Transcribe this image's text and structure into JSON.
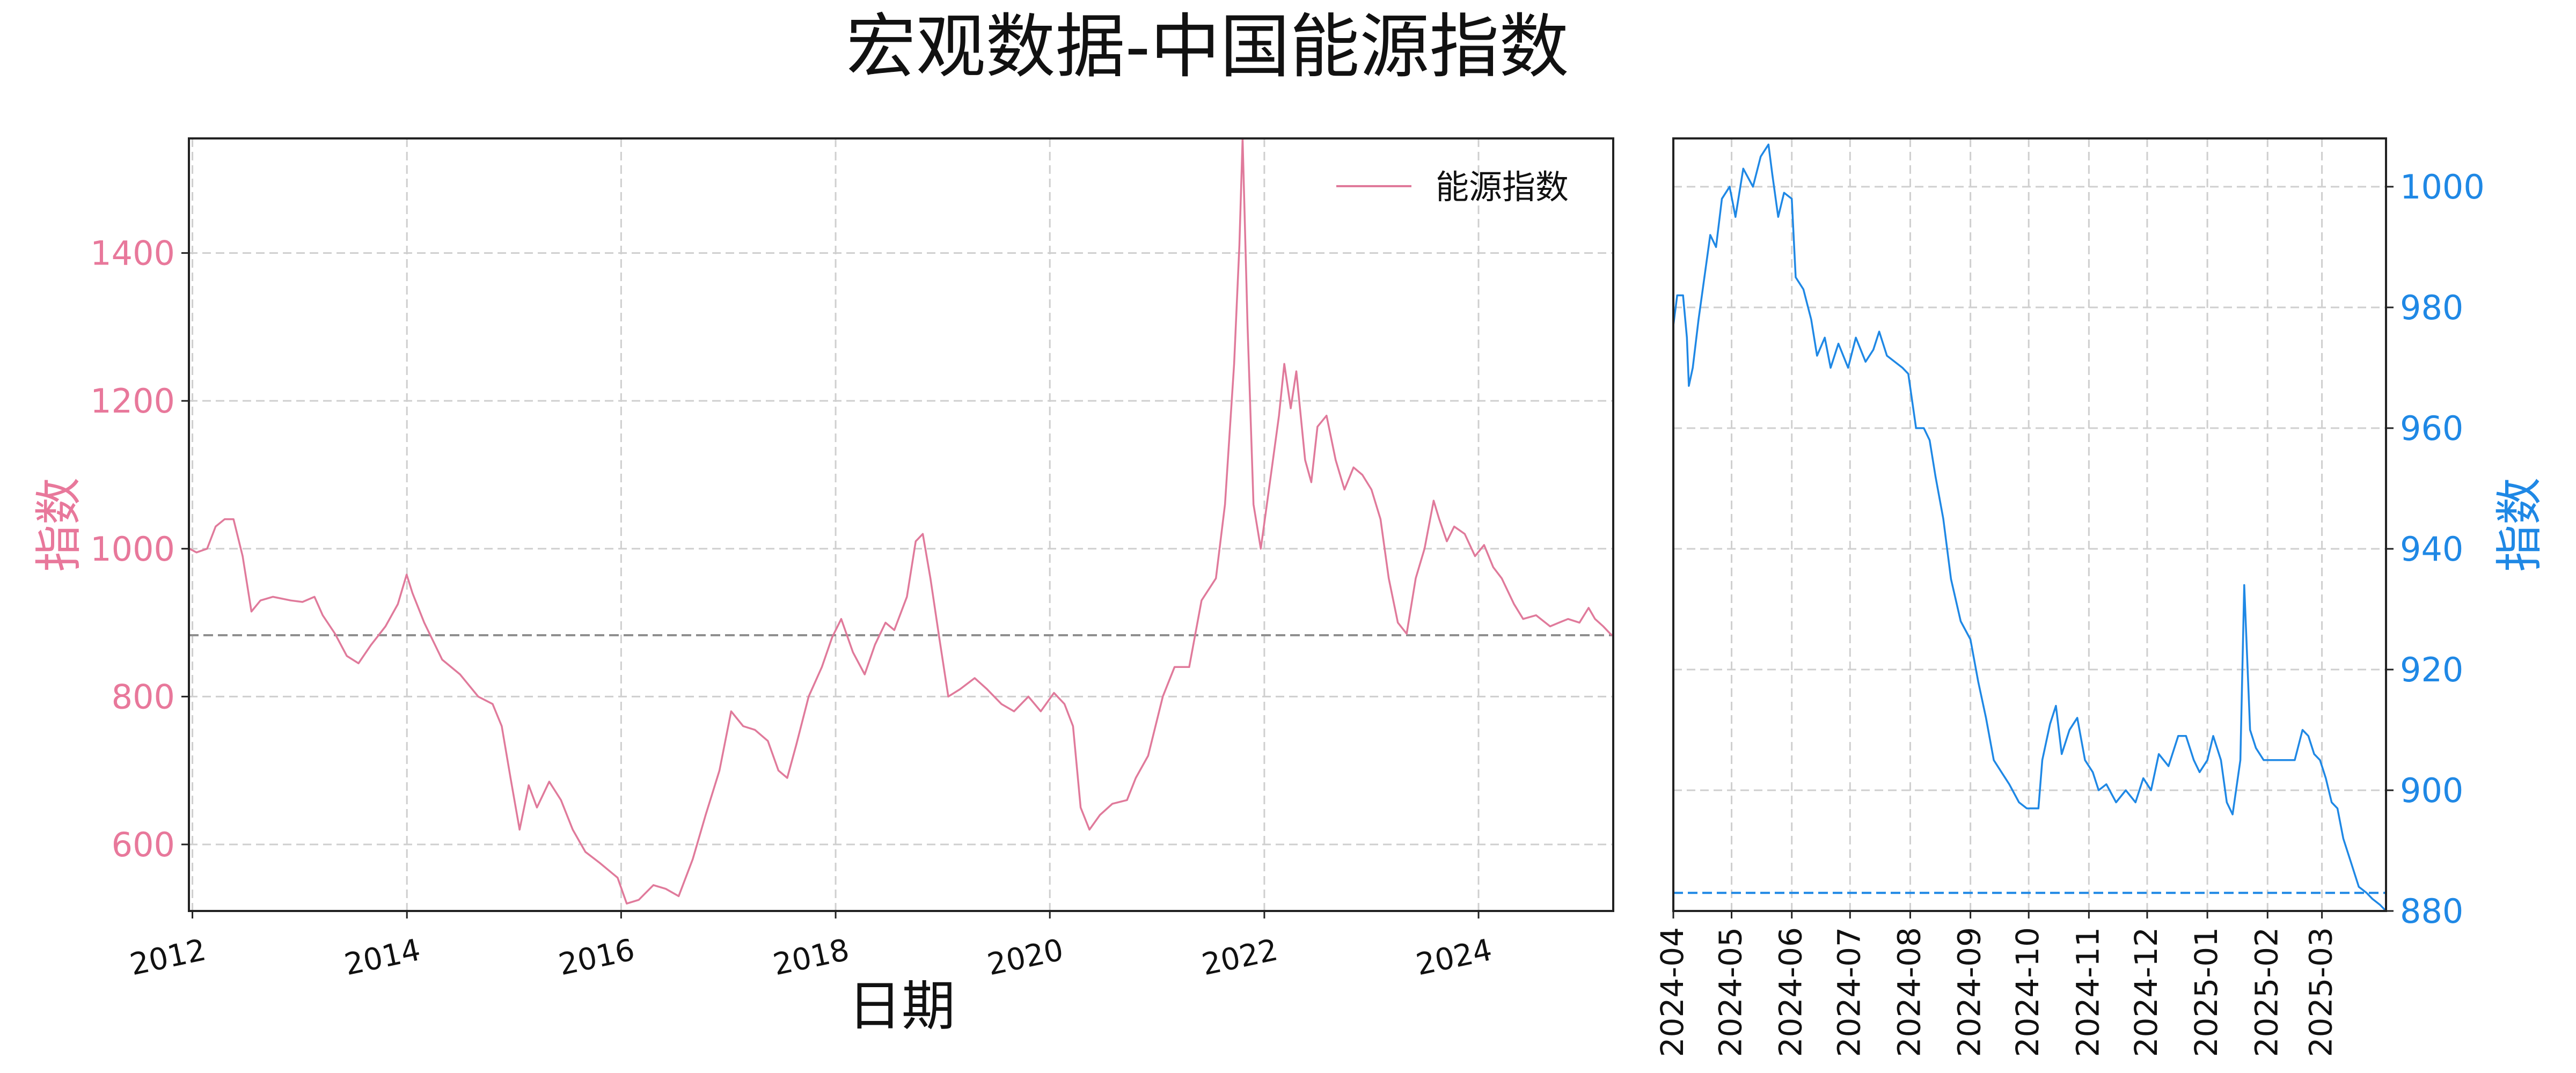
{
  "title": "宏观数据-中国能源指数",
  "colors": {
    "main_line": "#e07a9b",
    "main_axis": "#e8789b",
    "right_line": "#1f88e5",
    "right_axis": "#1f88e5",
    "grid": "#cfcfcf",
    "refline": "#8f8f8f"
  },
  "chart_data": [
    {
      "type": "line",
      "xlabel": "日期",
      "ylabel": "指数",
      "legend": "top-right",
      "grid": true,
      "ylim": [
        510,
        1555
      ],
      "xlim": [
        "2011-12-20",
        "2025-04-04"
      ],
      "x_ticks": [
        "2012",
        "2014",
        "2016",
        "2018",
        "2020",
        "2022",
        "2024"
      ],
      "y_ticks": [
        600,
        800,
        1000,
        1200,
        1400
      ],
      "reference_line": 883,
      "series": [
        {
          "name": "能源指数",
          "points": [
            [
              "2011-12-22",
              1000
            ],
            [
              "2012-01-15",
              995
            ],
            [
              "2012-02-20",
              1000
            ],
            [
              "2012-03-20",
              1030
            ],
            [
              "2012-04-20",
              1040
            ],
            [
              "2012-05-20",
              1040
            ],
            [
              "2012-06-20",
              990
            ],
            [
              "2012-07-20",
              915
            ],
            [
              "2012-08-20",
              930
            ],
            [
              "2012-10-01",
              935
            ],
            [
              "2012-12-01",
              930
            ],
            [
              "2013-01-10",
              928
            ],
            [
              "2013-02-20",
              935
            ],
            [
              "2013-03-20",
              910
            ],
            [
              "2013-05-01",
              885
            ],
            [
              "2013-06-10",
              855
            ],
            [
              "2013-07-20",
              845
            ],
            [
              "2013-09-01",
              870
            ],
            [
              "2013-10-20",
              895
            ],
            [
              "2013-12-01",
              925
            ],
            [
              "2013-12-31",
              965
            ],
            [
              "2014-01-20",
              940
            ],
            [
              "2014-03-01",
              900
            ],
            [
              "2014-05-01",
              850
            ],
            [
              "2014-07-01",
              830
            ],
            [
              "2014-09-01",
              800
            ],
            [
              "2014-10-20",
              790
            ],
            [
              "2014-11-20",
              760
            ],
            [
              "2014-12-20",
              690
            ],
            [
              "2015-01-20",
              620
            ],
            [
              "2015-02-20",
              680
            ],
            [
              "2015-03-20",
              650
            ],
            [
              "2015-05-01",
              685
            ],
            [
              "2015-06-10",
              660
            ],
            [
              "2015-07-20",
              620
            ],
            [
              "2015-09-01",
              590
            ],
            [
              "2015-10-20",
              575
            ],
            [
              "2015-12-20",
              555
            ],
            [
              "2016-01-20",
              520
            ],
            [
              "2016-03-01",
              525
            ],
            [
              "2016-04-20",
              545
            ],
            [
              "2016-06-01",
              540
            ],
            [
              "2016-07-15",
              530
            ],
            [
              "2016-09-01",
              580
            ],
            [
              "2016-10-15",
              640
            ],
            [
              "2016-12-01",
              700
            ],
            [
              "2017-01-10",
              780
            ],
            [
              "2017-02-20",
              760
            ],
            [
              "2017-04-01",
              755
            ],
            [
              "2017-05-15",
              740
            ],
            [
              "2017-06-20",
              700
            ],
            [
              "2017-07-20",
              690
            ],
            [
              "2017-08-20",
              735
            ],
            [
              "2017-10-01",
              800
            ],
            [
              "2017-11-15",
              840
            ],
            [
              "2017-12-20",
              880
            ],
            [
              "2018-01-20",
              905
            ],
            [
              "2018-03-01",
              860
            ],
            [
              "2018-04-10",
              830
            ],
            [
              "2018-05-15",
              870
            ],
            [
              "2018-06-20",
              900
            ],
            [
              "2018-07-20",
              890
            ],
            [
              "2018-09-01",
              935
            ],
            [
              "2018-10-01",
              1010
            ],
            [
              "2018-10-25",
              1020
            ],
            [
              "2018-11-20",
              960
            ],
            [
              "2018-12-20",
              880
            ],
            [
              "2019-01-20",
              800
            ],
            [
              "2019-03-01",
              810
            ],
            [
              "2019-04-20",
              825
            ],
            [
              "2019-06-01",
              810
            ],
            [
              "2019-07-20",
              790
            ],
            [
              "2019-09-01",
              780
            ],
            [
              "2019-10-20",
              800
            ],
            [
              "2019-12-01",
              780
            ],
            [
              "2020-01-15",
              805
            ],
            [
              "2020-02-20",
              790
            ],
            [
              "2020-03-20",
              760
            ],
            [
              "2020-04-15",
              650
            ],
            [
              "2020-05-15",
              620
            ],
            [
              "2020-06-20",
              640
            ],
            [
              "2020-08-01",
              655
            ],
            [
              "2020-09-20",
              660
            ],
            [
              "2020-10-20",
              690
            ],
            [
              "2020-12-01",
              720
            ],
            [
              "2021-01-20",
              800
            ],
            [
              "2021-03-01",
              840
            ],
            [
              "2021-04-20",
              840
            ],
            [
              "2021-06-01",
              930
            ],
            [
              "2021-07-20",
              960
            ],
            [
              "2021-08-20",
              1060
            ],
            [
              "2021-09-20",
              1250
            ],
            [
              "2021-10-08",
              1410
            ],
            [
              "2021-10-19",
              1555
            ],
            [
              "2021-11-05",
              1300
            ],
            [
              "2021-11-25",
              1060
            ],
            [
              "2021-12-20",
              1000
            ],
            [
              "2022-01-20",
              1090
            ],
            [
              "2022-02-20",
              1180
            ],
            [
              "2022-03-10",
              1250
            ],
            [
              "2022-04-01",
              1190
            ],
            [
              "2022-04-20",
              1240
            ],
            [
              "2022-05-20",
              1120
            ],
            [
              "2022-06-10",
              1090
            ],
            [
              "2022-07-01",
              1165
            ],
            [
              "2022-08-01",
              1180
            ],
            [
              "2022-09-01",
              1120
            ],
            [
              "2022-10-01",
              1080
            ],
            [
              "2022-11-01",
              1110
            ],
            [
              "2022-12-01",
              1100
            ],
            [
              "2023-01-01",
              1080
            ],
            [
              "2023-02-01",
              1040
            ],
            [
              "2023-03-01",
              960
            ],
            [
              "2023-04-01",
              900
            ],
            [
              "2023-05-01",
              885
            ],
            [
              "2023-06-01",
              960
            ],
            [
              "2023-07-01",
              1000
            ],
            [
              "2023-08-01",
              1065
            ],
            [
              "2023-08-20",
              1040
            ],
            [
              "2023-09-15",
              1010
            ],
            [
              "2023-10-10",
              1030
            ],
            [
              "2023-11-15",
              1020
            ],
            [
              "2023-12-20",
              990
            ],
            [
              "2024-01-20",
              1005
            ],
            [
              "2024-02-20",
              975
            ],
            [
              "2024-03-20",
              960
            ],
            [
              "2024-05-01",
              925
            ],
            [
              "2024-06-01",
              905
            ],
            [
              "2024-07-15",
              910
            ],
            [
              "2024-09-01",
              895
            ],
            [
              "2024-10-01",
              900
            ],
            [
              "2024-11-01",
              905
            ],
            [
              "2024-12-10",
              900
            ],
            [
              "2025-01-10",
              920
            ],
            [
              "2025-02-01",
              905
            ],
            [
              "2025-03-01",
              895
            ],
            [
              "2025-03-25",
              885
            ],
            [
              "2025-04-03",
              882
            ]
          ]
        }
      ]
    },
    {
      "type": "line",
      "ylabel": "指数",
      "grid": true,
      "ylim": [
        880,
        1008
      ],
      "xlim": [
        "2024-04-01",
        "2025-04-03"
      ],
      "x_ticks": [
        "2024-04",
        "2024-05",
        "2024-06",
        "2024-07",
        "2024-08",
        "2024-09",
        "2024-10",
        "2024-11",
        "2024-12",
        "2025-01",
        "2025-02",
        "2025-03"
      ],
      "y_ticks": [
        880,
        900,
        920,
        940,
        960,
        980,
        1000
      ],
      "reference_line": 883,
      "series": [
        {
          "points": [
            [
              "2024-04-01",
              977
            ],
            [
              "2024-04-03",
              982
            ],
            [
              "2024-04-06",
              982
            ],
            [
              "2024-04-08",
              975
            ],
            [
              "2024-04-09",
              967
            ],
            [
              "2024-04-11",
              970
            ],
            [
              "2024-04-14",
              978
            ],
            [
              "2024-04-17",
              985
            ],
            [
              "2024-04-20",
              992
            ],
            [
              "2024-04-23",
              990
            ],
            [
              "2024-04-26",
              998
            ],
            [
              "2024-04-30",
              1000
            ],
            [
              "2024-05-03",
              995
            ],
            [
              "2024-05-07",
              1003
            ],
            [
              "2024-05-12",
              1000
            ],
            [
              "2024-05-16",
              1005
            ],
            [
              "2024-05-20",
              1007
            ],
            [
              "2024-05-22",
              1002
            ],
            [
              "2024-05-25",
              995
            ],
            [
              "2024-05-28",
              999
            ],
            [
              "2024-06-01",
              998
            ],
            [
              "2024-06-03",
              985
            ],
            [
              "2024-06-07",
              983
            ],
            [
              "2024-06-11",
              978
            ],
            [
              "2024-06-14",
              972
            ],
            [
              "2024-06-18",
              975
            ],
            [
              "2024-06-21",
              970
            ],
            [
              "2024-06-25",
              974
            ],
            [
              "2024-06-30",
              970
            ],
            [
              "2024-07-04",
              975
            ],
            [
              "2024-07-09",
              971
            ],
            [
              "2024-07-13",
              973
            ],
            [
              "2024-07-16",
              976
            ],
            [
              "2024-07-20",
              972
            ],
            [
              "2024-07-24",
              971
            ],
            [
              "2024-07-28",
              970
            ],
            [
              "2024-07-31",
              969
            ],
            [
              "2024-08-04",
              960
            ],
            [
              "2024-08-08",
              960
            ],
            [
              "2024-08-11",
              958
            ],
            [
              "2024-08-14",
              952
            ],
            [
              "2024-08-18",
              945
            ],
            [
              "2024-08-22",
              935
            ],
            [
              "2024-08-27",
              928
            ],
            [
              "2024-09-01",
              925
            ],
            [
              "2024-09-05",
              918
            ],
            [
              "2024-09-09",
              912
            ],
            [
              "2024-09-13",
              905
            ],
            [
              "2024-09-17",
              903
            ],
            [
              "2024-09-21",
              901
            ],
            [
              "2024-09-26",
              898
            ],
            [
              "2024-09-30",
              897
            ],
            [
              "2024-10-03",
              897
            ],
            [
              "2024-10-06",
              897
            ],
            [
              "2024-10-08",
              905
            ],
            [
              "2024-10-12",
              911
            ],
            [
              "2024-10-15",
              914
            ],
            [
              "2024-10-18",
              906
            ],
            [
              "2024-10-22",
              910
            ],
            [
              "2024-10-26",
              912
            ],
            [
              "2024-10-30",
              905
            ],
            [
              "2024-11-03",
              903
            ],
            [
              "2024-11-06",
              900
            ],
            [
              "2024-11-10",
              901
            ],
            [
              "2024-11-15",
              898
            ],
            [
              "2024-11-20",
              900
            ],
            [
              "2024-11-25",
              898
            ],
            [
              "2024-11-29",
              902
            ],
            [
              "2024-12-03",
              900
            ],
            [
              "2024-12-07",
              906
            ],
            [
              "2024-12-12",
              904
            ],
            [
              "2024-12-17",
              909
            ],
            [
              "2024-12-21",
              909
            ],
            [
              "2024-12-25",
              905
            ],
            [
              "2024-12-28",
              903
            ],
            [
              "2025-01-01",
              905
            ],
            [
              "2025-01-04",
              909
            ],
            [
              "2025-01-08",
              905
            ],
            [
              "2025-01-11",
              898
            ],
            [
              "2025-01-14",
              896
            ],
            [
              "2025-01-18",
              905
            ],
            [
              "2025-01-20",
              934
            ],
            [
              "2025-01-23",
              910
            ],
            [
              "2025-01-26",
              907
            ],
            [
              "2025-01-30",
              905
            ],
            [
              "2025-02-05",
              905
            ],
            [
              "2025-02-10",
              905
            ],
            [
              "2025-02-15",
              905
            ],
            [
              "2025-02-19",
              910
            ],
            [
              "2025-02-22",
              909
            ],
            [
              "2025-02-25",
              906
            ],
            [
              "2025-02-28",
              905
            ],
            [
              "2025-03-03",
              902
            ],
            [
              "2025-03-06",
              898
            ],
            [
              "2025-03-09",
              897
            ],
            [
              "2025-03-12",
              892
            ],
            [
              "2025-03-16",
              888
            ],
            [
              "2025-03-20",
              884
            ],
            [
              "2025-03-24",
              883
            ],
            [
              "2025-03-27",
              882
            ],
            [
              "2025-03-31",
              881
            ],
            [
              "2025-04-03",
              880
            ]
          ]
        }
      ]
    }
  ]
}
